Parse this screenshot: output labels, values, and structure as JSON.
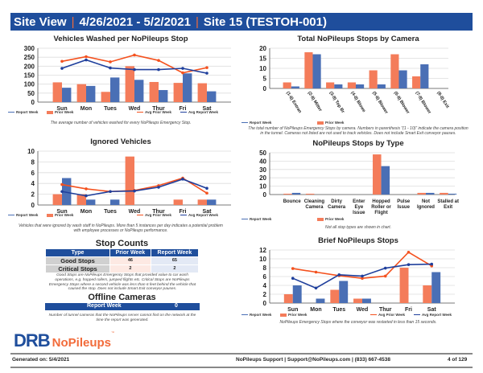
{
  "header": {
    "view": "Site View",
    "date_range": "4/26/2021 - 5/2/2021",
    "site": "Site 15 (TESTOH-001)"
  },
  "colors": {
    "header": "#1f4e9c",
    "prior": "#f47c5a",
    "report": "#4a6fb5",
    "avg_prior": "#f4511e",
    "avg_report": "#1f3f9c"
  },
  "legend": {
    "prior": "Prior Week",
    "report": "Report Week",
    "avg_prior": "Avg Prior Week",
    "avg_report": "Avg Report Week"
  },
  "chart_data": [
    {
      "type": "bar",
      "title": "Vehicles Washed per NoPileups Stop",
      "categories": [
        "Sun",
        "Mon",
        "Tues",
        "Wed",
        "Thur",
        "Fri",
        "Sat"
      ],
      "ylim": [
        0,
        300
      ],
      "yticks": [
        0,
        50,
        100,
        150,
        200,
        250,
        300
      ],
      "series": [
        {
          "name": "Prior Week",
          "values": [
            110,
            100,
            57,
            200,
            112,
            107,
            105
          ]
        },
        {
          "name": "Report Week",
          "values": [
            80,
            90,
            137,
            124,
            67,
            160,
            60
          ]
        }
      ],
      "lines": [
        {
          "name": "Avg Prior Week",
          "values": [
            227,
            253,
            224,
            262,
            232,
            163,
            192
          ]
        },
        {
          "name": "Avg Report Week",
          "values": [
            188,
            235,
            190,
            181,
            181,
            188,
            161
          ]
        }
      ],
      "caption": "The average number of vehicles washed for every NoPileups Emergency Stop.",
      "legend": "bottom"
    },
    {
      "type": "bar",
      "title": "Total NoPileups Stops by Camera",
      "categories": [
        "(1-8) Entran",
        "(2-8) Mitter",
        "(3-8) Top Br",
        "(4-8) Blowe",
        "(5-8) Blower",
        "(6-8) Blower",
        "(7-8) Blower",
        "(8-8) Exit"
      ],
      "ylim": [
        0,
        20
      ],
      "yticks": [
        0,
        5,
        10,
        15,
        20
      ],
      "series": [
        {
          "name": "Prior Week",
          "values": [
            3,
            18,
            3,
            3,
            9,
            17,
            6,
            0
          ]
        },
        {
          "name": "Report Week",
          "values": [
            1,
            17,
            2,
            2,
            2,
            9,
            12,
            0
          ]
        }
      ],
      "caption": "The total number of NoPileups Emergency Stops by camera. Numbers in parenthesis \"(1 - 10)\" indicate the camera position in the tunnel. Cameras not listed are not used to track vehicles. Does not include Smart Exit conveyor pauses.",
      "legend": "bottom"
    },
    {
      "type": "bar",
      "title": "Ignored Vehicles",
      "categories": [
        "Sun",
        "Mon",
        "Tues",
        "Wed",
        "Thur",
        "Fri",
        "Sat"
      ],
      "ylim": [
        0,
        10
      ],
      "yticks": [
        0,
        2,
        4,
        6,
        8,
        10
      ],
      "series": [
        {
          "name": "Prior Week",
          "values": [
            2,
            2,
            0,
            9,
            0,
            1,
            1
          ]
        },
        {
          "name": "Report Week",
          "values": [
            5,
            1,
            1,
            0,
            0,
            0,
            1
          ]
        }
      ],
      "lines": [
        {
          "name": "Avg Prior Week",
          "values": [
            3.8,
            3.0,
            2.5,
            2.7,
            3.6,
            5.0,
            2.2
          ]
        },
        {
          "name": "Avg Report Week",
          "values": [
            2.5,
            1.7,
            2.5,
            2.6,
            3.3,
            4.8,
            3.1
          ]
        }
      ],
      "caption": "Vehicles that were ignored by wash staff in NoPileups. More than 5 instances per day indicates a potential problem with employee processes or NoPileups performance.",
      "legend": "bottom"
    },
    {
      "type": "bar",
      "title": "NoPileups Stops by Type",
      "categories": [
        "Bounce",
        "Cleaning Camera",
        "Dirty Camera",
        "Enter Eye Issue",
        "Hopped Roller or Flight",
        "Pulse Issue",
        "Not Ignored",
        "Stalled at Exit"
      ],
      "ylim": [
        0,
        50
      ],
      "yticks": [
        0,
        10,
        20,
        30,
        40,
        50
      ],
      "series": [
        {
          "name": "Prior Week",
          "values": [
            1,
            1,
            0,
            0,
            48,
            0,
            2,
            2
          ]
        },
        {
          "name": "Report Week",
          "values": [
            2,
            0,
            0,
            0,
            34,
            0,
            2,
            1
          ]
        }
      ],
      "caption": "Not all stop types are shown in chart.",
      "legend": "bottom"
    },
    {
      "type": "bar",
      "title": "Brief NoPileups Stops",
      "categories": [
        "Sun",
        "Mon",
        "Tues",
        "Wed",
        "Thur",
        "Fri",
        "Sat"
      ],
      "ylim": [
        0,
        12
      ],
      "yticks": [
        0,
        2,
        4,
        6,
        8,
        10,
        12
      ],
      "series": [
        {
          "name": "Prior Week",
          "values": [
            2,
            0,
            3,
            1,
            0,
            8,
            4
          ]
        },
        {
          "name": "Report Week",
          "values": [
            4,
            1,
            5,
            1,
            0,
            0,
            7
          ]
        }
      ],
      "lines": [
        {
          "name": "Avg Prior Week",
          "values": [
            7.8,
            7.0,
            6.2,
            5.6,
            6.1,
            11.5,
            8.4
          ]
        },
        {
          "name": "Avg Report Week",
          "values": [
            5.6,
            3.4,
            6.4,
            6.1,
            7.9,
            8.7,
            8.8
          ]
        }
      ],
      "caption": "NoPileups Emergency Stops where the conveyor was restarted in less than 15 seconds.",
      "legend": "bottom"
    }
  ],
  "stop_counts": {
    "title": "Stop Counts",
    "headers": [
      "Type",
      "Prior Week",
      "Report Week"
    ],
    "rows": [
      {
        "type": "Good Stops",
        "prior": "46",
        "report": "65"
      },
      {
        "type": "Critical Stops",
        "prior": "2",
        "report": "2"
      }
    ],
    "note": "Good Stops are NoPileups Emergency Stops that provided value to car wash operations, e.g. hopped rollers, jumped flights etc. Critical Stops are NoPileups Emergency Stops where a second vehicle was less than 6 feet behind the vehicle that caused the stop. Does not include Smart Exit conveyor pauses."
  },
  "offline": {
    "title": "Offline Cameras",
    "label": "Report Week",
    "value": "0",
    "note": "Number of tunnel cameras that the NoPileups server cannot find on the network at the time the report was generated."
  },
  "logo": {
    "brand": "DRB",
    "product": "NoPileups"
  },
  "footer": {
    "generated": "Generated on: 5/4/2021",
    "support": "NoPileups Support | Support@NoPileups.com | (833) 667-4538",
    "page": "4 of 129"
  }
}
